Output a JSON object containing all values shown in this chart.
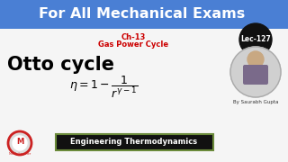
{
  "title": "For All Mechanical Exams",
  "title_bg": "#4a7fd4",
  "title_color": "#ffffff",
  "subtitle1": "Ch-13",
  "subtitle2": "Gas Power Cycle",
  "subtitle_color": "#cc0000",
  "main_text": "Otto cycle",
  "main_text_color": "#000000",
  "lec_text": "Lec-127",
  "lec_bg": "#111111",
  "lec_color": "#ffffff",
  "bottom_text": "Engineering Thermodynamics",
  "bottom_bg": "#111111",
  "bottom_border": "#6a8a3a",
  "bottom_color": "#ffffff",
  "by_text": "By Saurabh Gupta",
  "by_color": "#333333",
  "bg_color": "#f0f0f0",
  "logo_red": "#cc2222",
  "logo_text": "M"
}
